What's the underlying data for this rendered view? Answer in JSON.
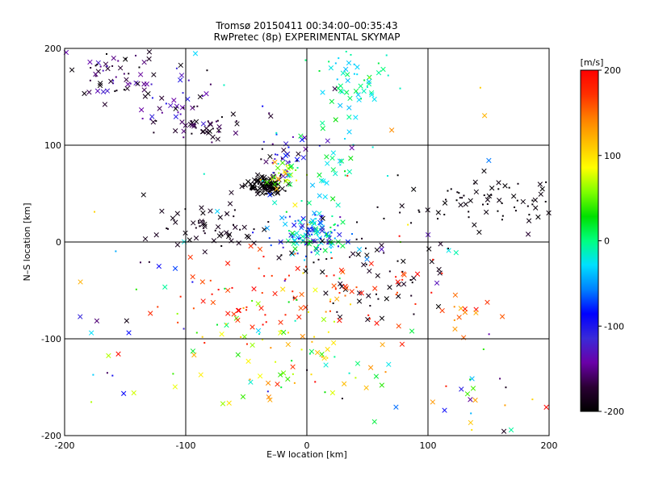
{
  "chart_data": {
    "type": "scatter",
    "title": "Tromsø 20150411 00:34:00–00:35:43",
    "subtitle": "RwPretec (8p) EXPERIMENTAL SKYMAP",
    "xlabel": "E–W location [km]",
    "ylabel": "N–S location [km]",
    "xlim": [
      -200,
      200
    ],
    "ylim": [
      -200,
      200
    ],
    "grid": true,
    "grid_lines": {
      "x": [
        -100,
        0,
        100
      ],
      "y": [
        -100,
        0,
        100
      ]
    },
    "x_ticks": [
      "-200",
      "-100",
      "0",
      "100",
      "200"
    ],
    "y_ticks": [
      "-200",
      "-100",
      "0",
      "100",
      "200"
    ],
    "colorbar": {
      "label": "[m/s]",
      "range": [
        -200,
        200
      ],
      "ticks": [
        "200",
        "100",
        "0",
        "-100",
        "-200"
      ],
      "colors": [
        "#000000",
        "#2a0033",
        "#6a00a8",
        "#3a2ad8",
        "#0000ff",
        "#0080ff",
        "#00e0ff",
        "#00ff80",
        "#00e000",
        "#80ff00",
        "#ffff00",
        "#ffc000",
        "#ff8000",
        "#ff3000",
        "#ff0000"
      ]
    },
    "clusters": [
      {
        "cx": -160,
        "cy": 170,
        "sx": 20,
        "sy": 14,
        "n": 60,
        "vmin": -200,
        "vmax": -120
      },
      {
        "cx": -110,
        "cy": 145,
        "sx": 18,
        "sy": 18,
        "n": 40,
        "vmin": -200,
        "vmax": -100
      },
      {
        "cx": -85,
        "cy": 118,
        "sx": 12,
        "sy": 8,
        "n": 35,
        "vmin": -200,
        "vmax": -150
      },
      {
        "cx": -35,
        "cy": 58,
        "sx": 8,
        "sy": 5,
        "n": 110,
        "vmin": -200,
        "vmax": -190
      },
      {
        "cx": -20,
        "cy": 90,
        "sx": 15,
        "sy": 12,
        "n": 40,
        "vmin": -200,
        "vmax": -60
      },
      {
        "cx": -22,
        "cy": 68,
        "sx": 10,
        "sy": 8,
        "n": 25,
        "vmin": 40,
        "vmax": 140
      },
      {
        "cx": -75,
        "cy": 15,
        "sx": 25,
        "sy": 12,
        "n": 60,
        "vmin": -200,
        "vmax": -180
      },
      {
        "cx": 5,
        "cy": 8,
        "sx": 16,
        "sy": 10,
        "n": 120,
        "vmin": -130,
        "vmax": 30
      },
      {
        "cx": 15,
        "cy": 60,
        "sx": 20,
        "sy": 30,
        "n": 45,
        "vmin": -40,
        "vmax": 30
      },
      {
        "cx": 40,
        "cy": 168,
        "sx": 16,
        "sy": 18,
        "n": 55,
        "vmin": -40,
        "vmax": 20
      },
      {
        "cx": 150,
        "cy": 40,
        "sx": 45,
        "sy": 12,
        "n": 80,
        "vmin": -200,
        "vmax": -190
      },
      {
        "cx": 50,
        "cy": -40,
        "sx": 35,
        "sy": 25,
        "n": 60,
        "vmin": -200,
        "vmax": -180
      },
      {
        "cx": 30,
        "cy": -50,
        "sx": 35,
        "sy": 25,
        "n": 45,
        "vmin": 150,
        "vmax": 200
      },
      {
        "cx": -20,
        "cy": -110,
        "sx": 45,
        "sy": 30,
        "n": 80,
        "vmin": -20,
        "vmax": 140
      },
      {
        "cx": -60,
        "cy": -60,
        "sx": 35,
        "sy": 30,
        "n": 40,
        "vmin": 160,
        "vmax": 200
      },
      {
        "cx": 140,
        "cy": -160,
        "sx": 25,
        "sy": 25,
        "n": 25,
        "vmin": -200,
        "vmax": 200
      },
      {
        "cx": 130,
        "cy": -70,
        "sx": 20,
        "sy": 15,
        "n": 15,
        "vmin": 120,
        "vmax": 200
      },
      {
        "cx": -170,
        "cy": -120,
        "sx": 20,
        "sy": 25,
        "n": 12,
        "vmin": -200,
        "vmax": 200
      },
      {
        "cx": 0,
        "cy": 0,
        "sx": 120,
        "sy": 120,
        "n": 90,
        "vmin": -200,
        "vmax": 200
      }
    ]
  }
}
